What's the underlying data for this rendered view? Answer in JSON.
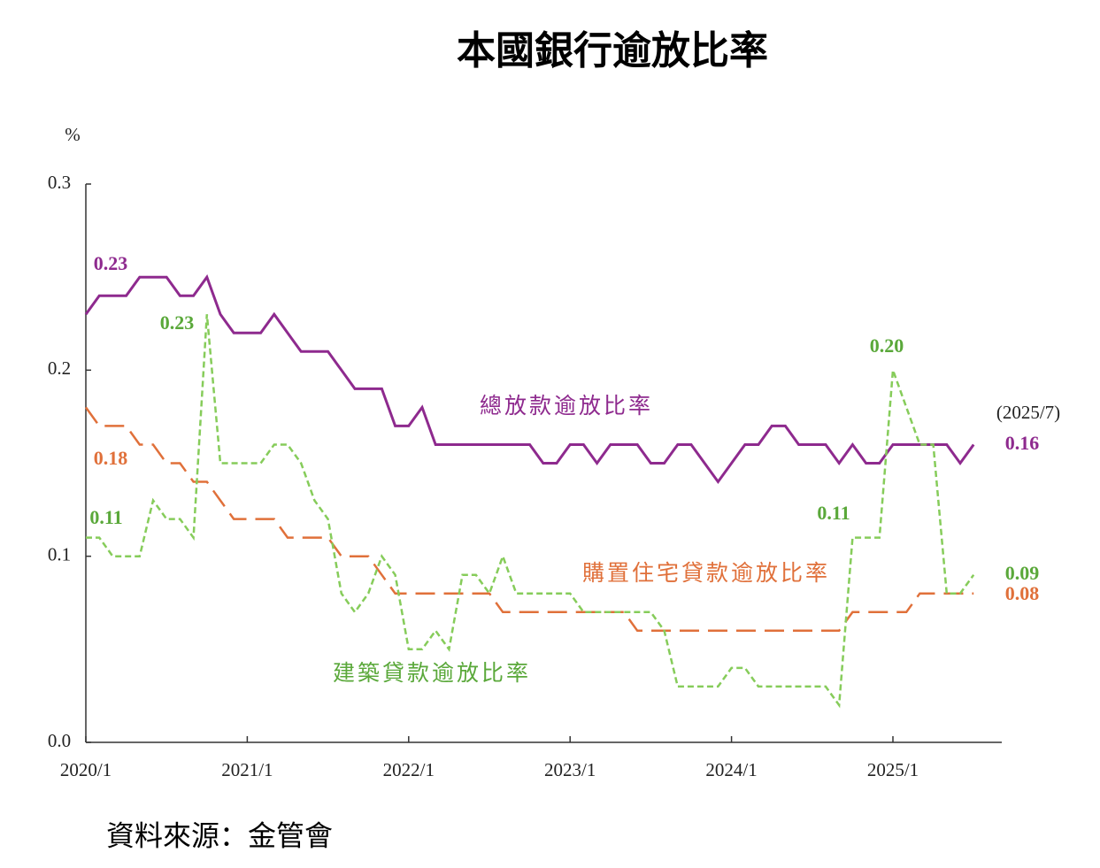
{
  "chart_data": {
    "type": "line",
    "title": "本國銀行逾放比率",
    "y_label": "%",
    "source": "資料來源：金管會",
    "categories": [
      "2020/1",
      null,
      null,
      null,
      null,
      null,
      null,
      null,
      null,
      null,
      null,
      null,
      "2021/1",
      null,
      null,
      null,
      null,
      null,
      null,
      null,
      null,
      null,
      null,
      null,
      "2022/1",
      null,
      null,
      null,
      null,
      null,
      null,
      null,
      null,
      null,
      null,
      null,
      "2023/1",
      null,
      null,
      null,
      null,
      null,
      null,
      null,
      null,
      null,
      null,
      null,
      "2024/1",
      null,
      null,
      null,
      null,
      null,
      null,
      null,
      null,
      null,
      null,
      null,
      "2025/1",
      null,
      null,
      null,
      null,
      null,
      null
    ],
    "series": [
      {
        "name": "總放款逾放比率",
        "color": "#8e2a8e",
        "dash": "solid",
        "values": [
          0.23,
          0.24,
          0.24,
          0.24,
          0.25,
          0.25,
          0.25,
          0.24,
          0.24,
          0.25,
          0.23,
          0.22,
          0.22,
          0.22,
          0.23,
          0.22,
          0.21,
          0.21,
          0.21,
          0.2,
          0.19,
          0.19,
          0.19,
          0.17,
          0.17,
          0.18,
          0.16,
          0.16,
          0.16,
          0.16,
          0.16,
          0.16,
          0.16,
          0.16,
          0.15,
          0.15,
          0.16,
          0.16,
          0.15,
          0.16,
          0.16,
          0.16,
          0.15,
          0.15,
          0.16,
          0.16,
          0.15,
          0.14,
          0.15,
          0.16,
          0.16,
          0.17,
          0.17,
          0.16,
          0.16,
          0.16,
          0.15,
          0.16,
          0.15,
          0.15,
          0.16,
          0.16,
          0.16,
          0.16,
          0.16,
          0.15,
          0.16
        ]
      },
      {
        "name": "購置住宅貸款逾放比率",
        "color": "#e0703a",
        "dash": "long",
        "values": [
          0.18,
          0.17,
          0.17,
          0.17,
          0.16,
          0.16,
          0.15,
          0.15,
          0.14,
          0.14,
          0.13,
          0.12,
          0.12,
          0.12,
          0.12,
          0.11,
          0.11,
          0.11,
          0.11,
          0.1,
          0.1,
          0.1,
          0.09,
          0.08,
          0.08,
          0.08,
          0.08,
          0.08,
          0.08,
          0.08,
          0.08,
          0.07,
          0.07,
          0.07,
          0.07,
          0.07,
          0.07,
          0.07,
          0.07,
          0.07,
          0.07,
          0.06,
          0.06,
          0.06,
          0.06,
          0.06,
          0.06,
          0.06,
          0.06,
          0.06,
          0.06,
          0.06,
          0.06,
          0.06,
          0.06,
          0.06,
          0.06,
          0.07,
          0.07,
          0.07,
          0.07,
          0.07,
          0.08,
          0.08,
          0.08,
          0.08,
          0.08
        ]
      },
      {
        "name": "建築貸款逾放比率",
        "color": "#86cc5a",
        "dash": "short",
        "values": [
          0.11,
          0.11,
          0.1,
          0.1,
          0.1,
          0.13,
          0.12,
          0.12,
          0.11,
          0.23,
          0.15,
          0.15,
          0.15,
          0.15,
          0.16,
          0.16,
          0.15,
          0.13,
          0.12,
          0.08,
          0.07,
          0.08,
          0.1,
          0.09,
          0.05,
          0.05,
          0.06,
          0.05,
          0.09,
          0.09,
          0.08,
          0.1,
          0.08,
          0.08,
          0.08,
          0.08,
          0.08,
          0.07,
          0.07,
          0.07,
          0.07,
          0.07,
          0.07,
          0.06,
          0.03,
          0.03,
          0.03,
          0.03,
          0.04,
          0.04,
          0.03,
          0.03,
          0.03,
          0.03,
          0.03,
          0.03,
          0.02,
          0.11,
          0.11,
          0.11,
          0.2,
          0.18,
          0.16,
          0.16,
          0.08,
          0.08,
          0.09
        ]
      }
    ],
    "annotations": [
      {
        "text": "0.23",
        "color": "#8e2a8e"
      },
      {
        "text": "0.23",
        "color": "#5aa83a"
      },
      {
        "text": "0.18",
        "color": "#e0703a"
      },
      {
        "text": "0.11",
        "color": "#5aa83a"
      },
      {
        "text": "0.20",
        "color": "#5aa83a"
      },
      {
        "text": "0.11",
        "color": "#5aa83a"
      },
      {
        "text": "(2025/7)",
        "color": "#222222"
      },
      {
        "text": "0.16",
        "color": "#8e2a8e"
      },
      {
        "text": "0.09",
        "color": "#5aa83a"
      },
      {
        "text": "0.08",
        "color": "#e0703a"
      }
    ],
    "ylim": [
      0,
      0.3
    ],
    "yticks": [
      {
        "value": 0,
        "label": "0.0"
      },
      0.1,
      0.2,
      0.3
    ]
  }
}
